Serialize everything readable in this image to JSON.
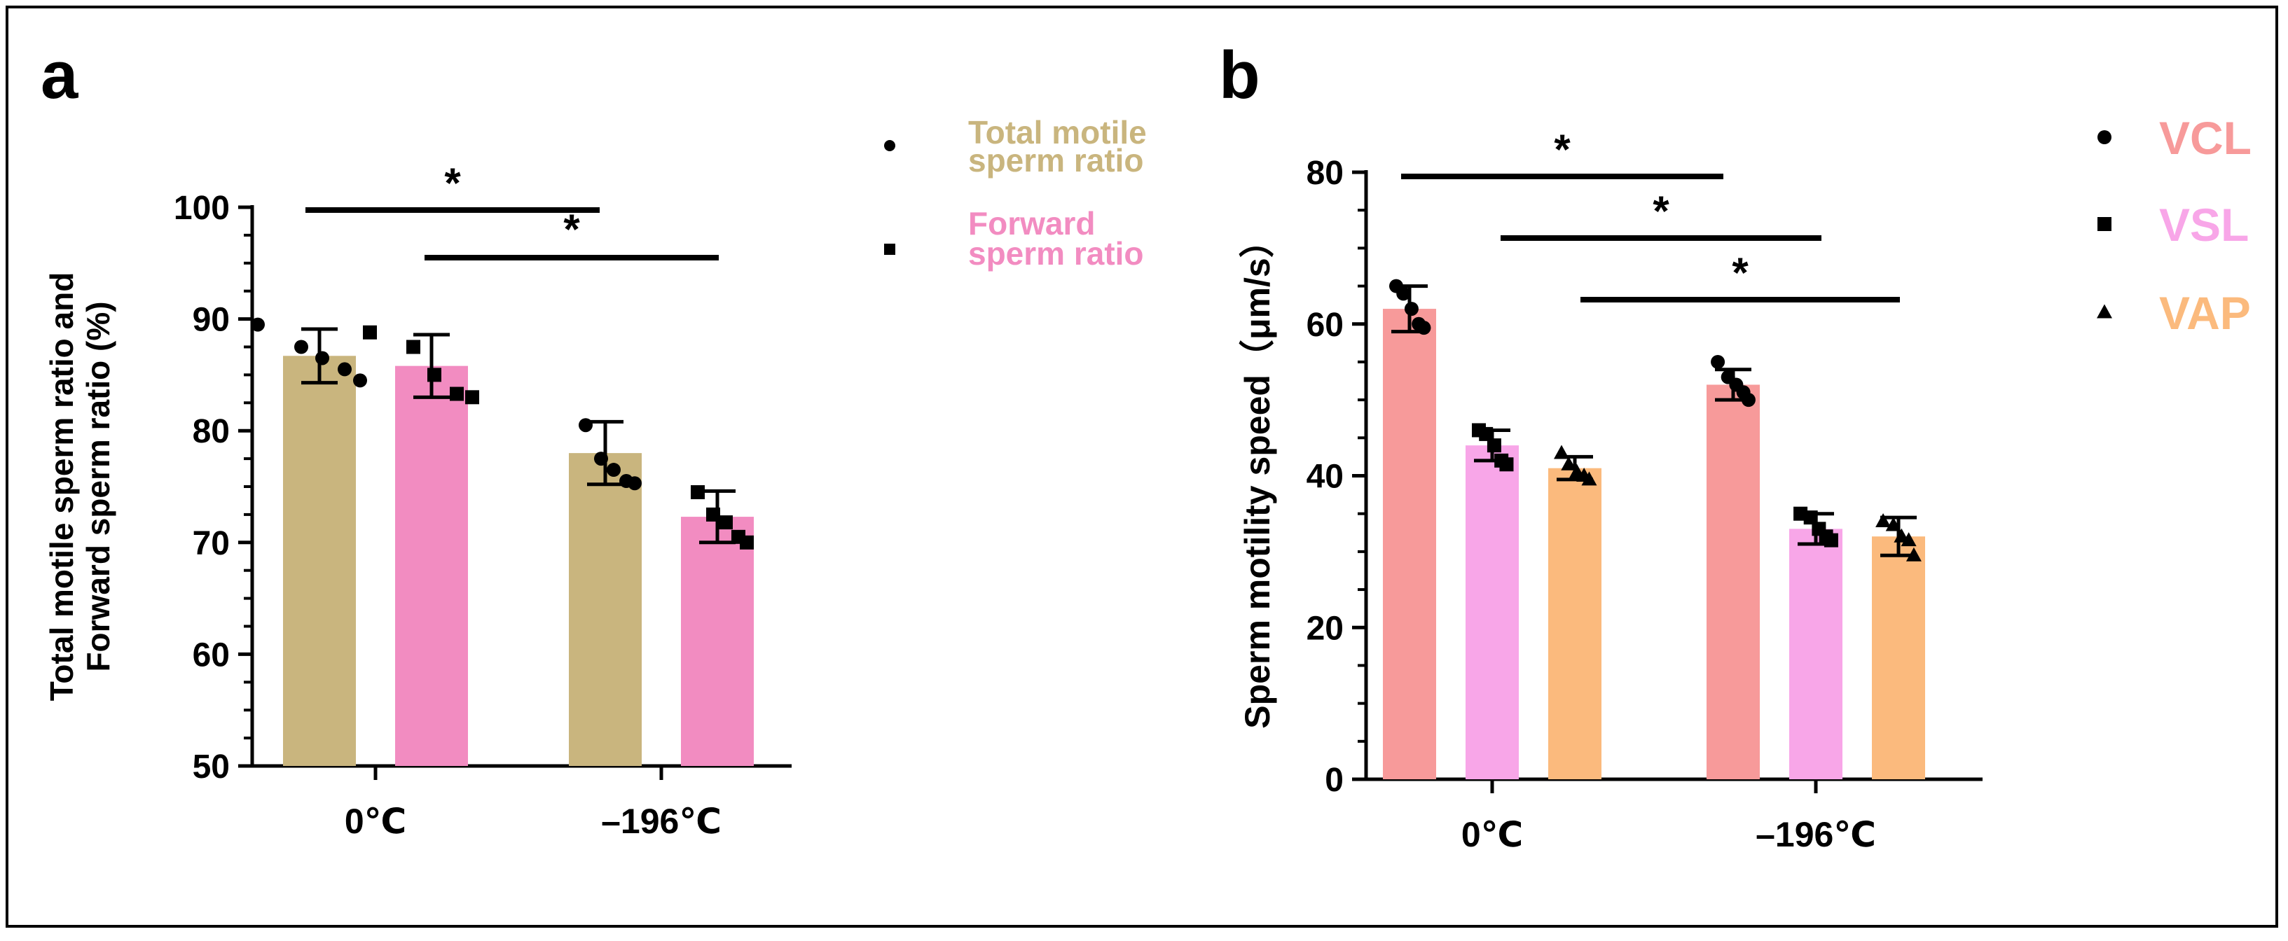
{
  "chart_data": [
    {
      "panel": "a",
      "type": "bar",
      "categories": [
        "0℃",
        "–196℃"
      ],
      "series": [
        {
          "name": "Total motile sperm ratio",
          "color": "#C9B57E",
          "values": [
            86.7,
            78.0
          ],
          "errors": [
            2.4,
            2.8
          ],
          "points": [
            [
              89.5,
              87.5,
              86.5,
              85.5,
              84.5
            ],
            [
              80.5,
              77.5,
              76.5,
              75.5,
              75.3
            ]
          ],
          "marker": "circle"
        },
        {
          "name": "Forward sperm ratio",
          "color": "#F28CC1",
          "values": [
            85.8,
            72.3
          ],
          "errors": [
            2.8,
            2.3
          ],
          "points": [
            [
              88.8,
              87.5,
              85.0,
              83.3,
              83.0
            ],
            [
              74.5,
              72.5,
              71.8,
              70.5,
              70.0
            ]
          ],
          "marker": "square"
        }
      ],
      "ylabel_line1": "Total motile sperm ratio and",
      "ylabel_line2": "Forward sperm ratio (%)",
      "xlabel": "",
      "ylim": [
        50,
        100
      ],
      "yticks": [
        50,
        60,
        70,
        80,
        90,
        100
      ],
      "ytick_labels": [
        "50",
        "60",
        "70",
        "80",
        "90",
        "100"
      ],
      "significance": [
        {
          "from": "0℃ Total motile sperm ratio",
          "to": "–196℃ Total motile sperm ratio",
          "label": "*"
        },
        {
          "from": "0℃ Forward sperm ratio",
          "to": "–196℃ Forward sperm ratio",
          "label": "*"
        }
      ],
      "legend": [
        {
          "line1": "Total motile",
          "line2": "sperm ratio",
          "color": "#C9B57E",
          "marker": "circle"
        },
        {
          "line1": "Forward",
          "line2": "sperm ratio",
          "color": "#F28CC1",
          "marker": "square"
        }
      ]
    },
    {
      "panel": "b",
      "type": "bar",
      "categories": [
        "0℃",
        "–196℃"
      ],
      "series": [
        {
          "name": "VCL",
          "color": "#F79A9A",
          "values": [
            62,
            52
          ],
          "errors": [
            3,
            2
          ],
          "points": [
            [
              65,
              64,
              62,
              60,
              59.5
            ],
            [
              55,
              53,
              52,
              51,
              50
            ]
          ],
          "marker": "circle"
        },
        {
          "name": "VSL",
          "color": "#F8A6E8",
          "values": [
            44,
            33
          ],
          "errors": [
            2,
            2
          ],
          "points": [
            [
              46,
              45.5,
              44,
              42,
              41.5
            ],
            [
              35,
              34.5,
              33,
              32,
              31.5
            ]
          ],
          "marker": "square"
        },
        {
          "name": "VAP",
          "color": "#FBBA7D",
          "values": [
            41,
            32
          ],
          "errors": [
            1.5,
            2.5
          ],
          "points": [
            [
              43,
              41.5,
              40.5,
              40,
              39.5
            ],
            [
              34,
              33.5,
              32,
              31.5,
              29.5
            ]
          ],
          "marker": "triangle"
        }
      ],
      "ylabel": "Sperm motility speed（μm/s）",
      "xlabel": "",
      "ylim": [
        0,
        80
      ],
      "yticks": [
        0,
        20,
        40,
        60,
        80
      ],
      "ytick_labels": [
        "0",
        "20",
        "40",
        "60",
        "80"
      ],
      "significance": [
        {
          "from": "0℃ VCL",
          "to": "–196℃ VCL",
          "label": "*"
        },
        {
          "from": "0℃ VSL",
          "to": "–196℃ VSL",
          "label": "*"
        },
        {
          "from": "0℃ VAP",
          "to": "–196℃ VAP",
          "label": "*"
        }
      ],
      "legend": [
        {
          "label": "VCL",
          "color": "#F79A9A",
          "marker": "circle"
        },
        {
          "label": "VSL",
          "color": "#F8A6E8",
          "marker": "square"
        },
        {
          "label": "VAP",
          "color": "#FBBA7D",
          "marker": "triangle"
        }
      ]
    }
  ]
}
